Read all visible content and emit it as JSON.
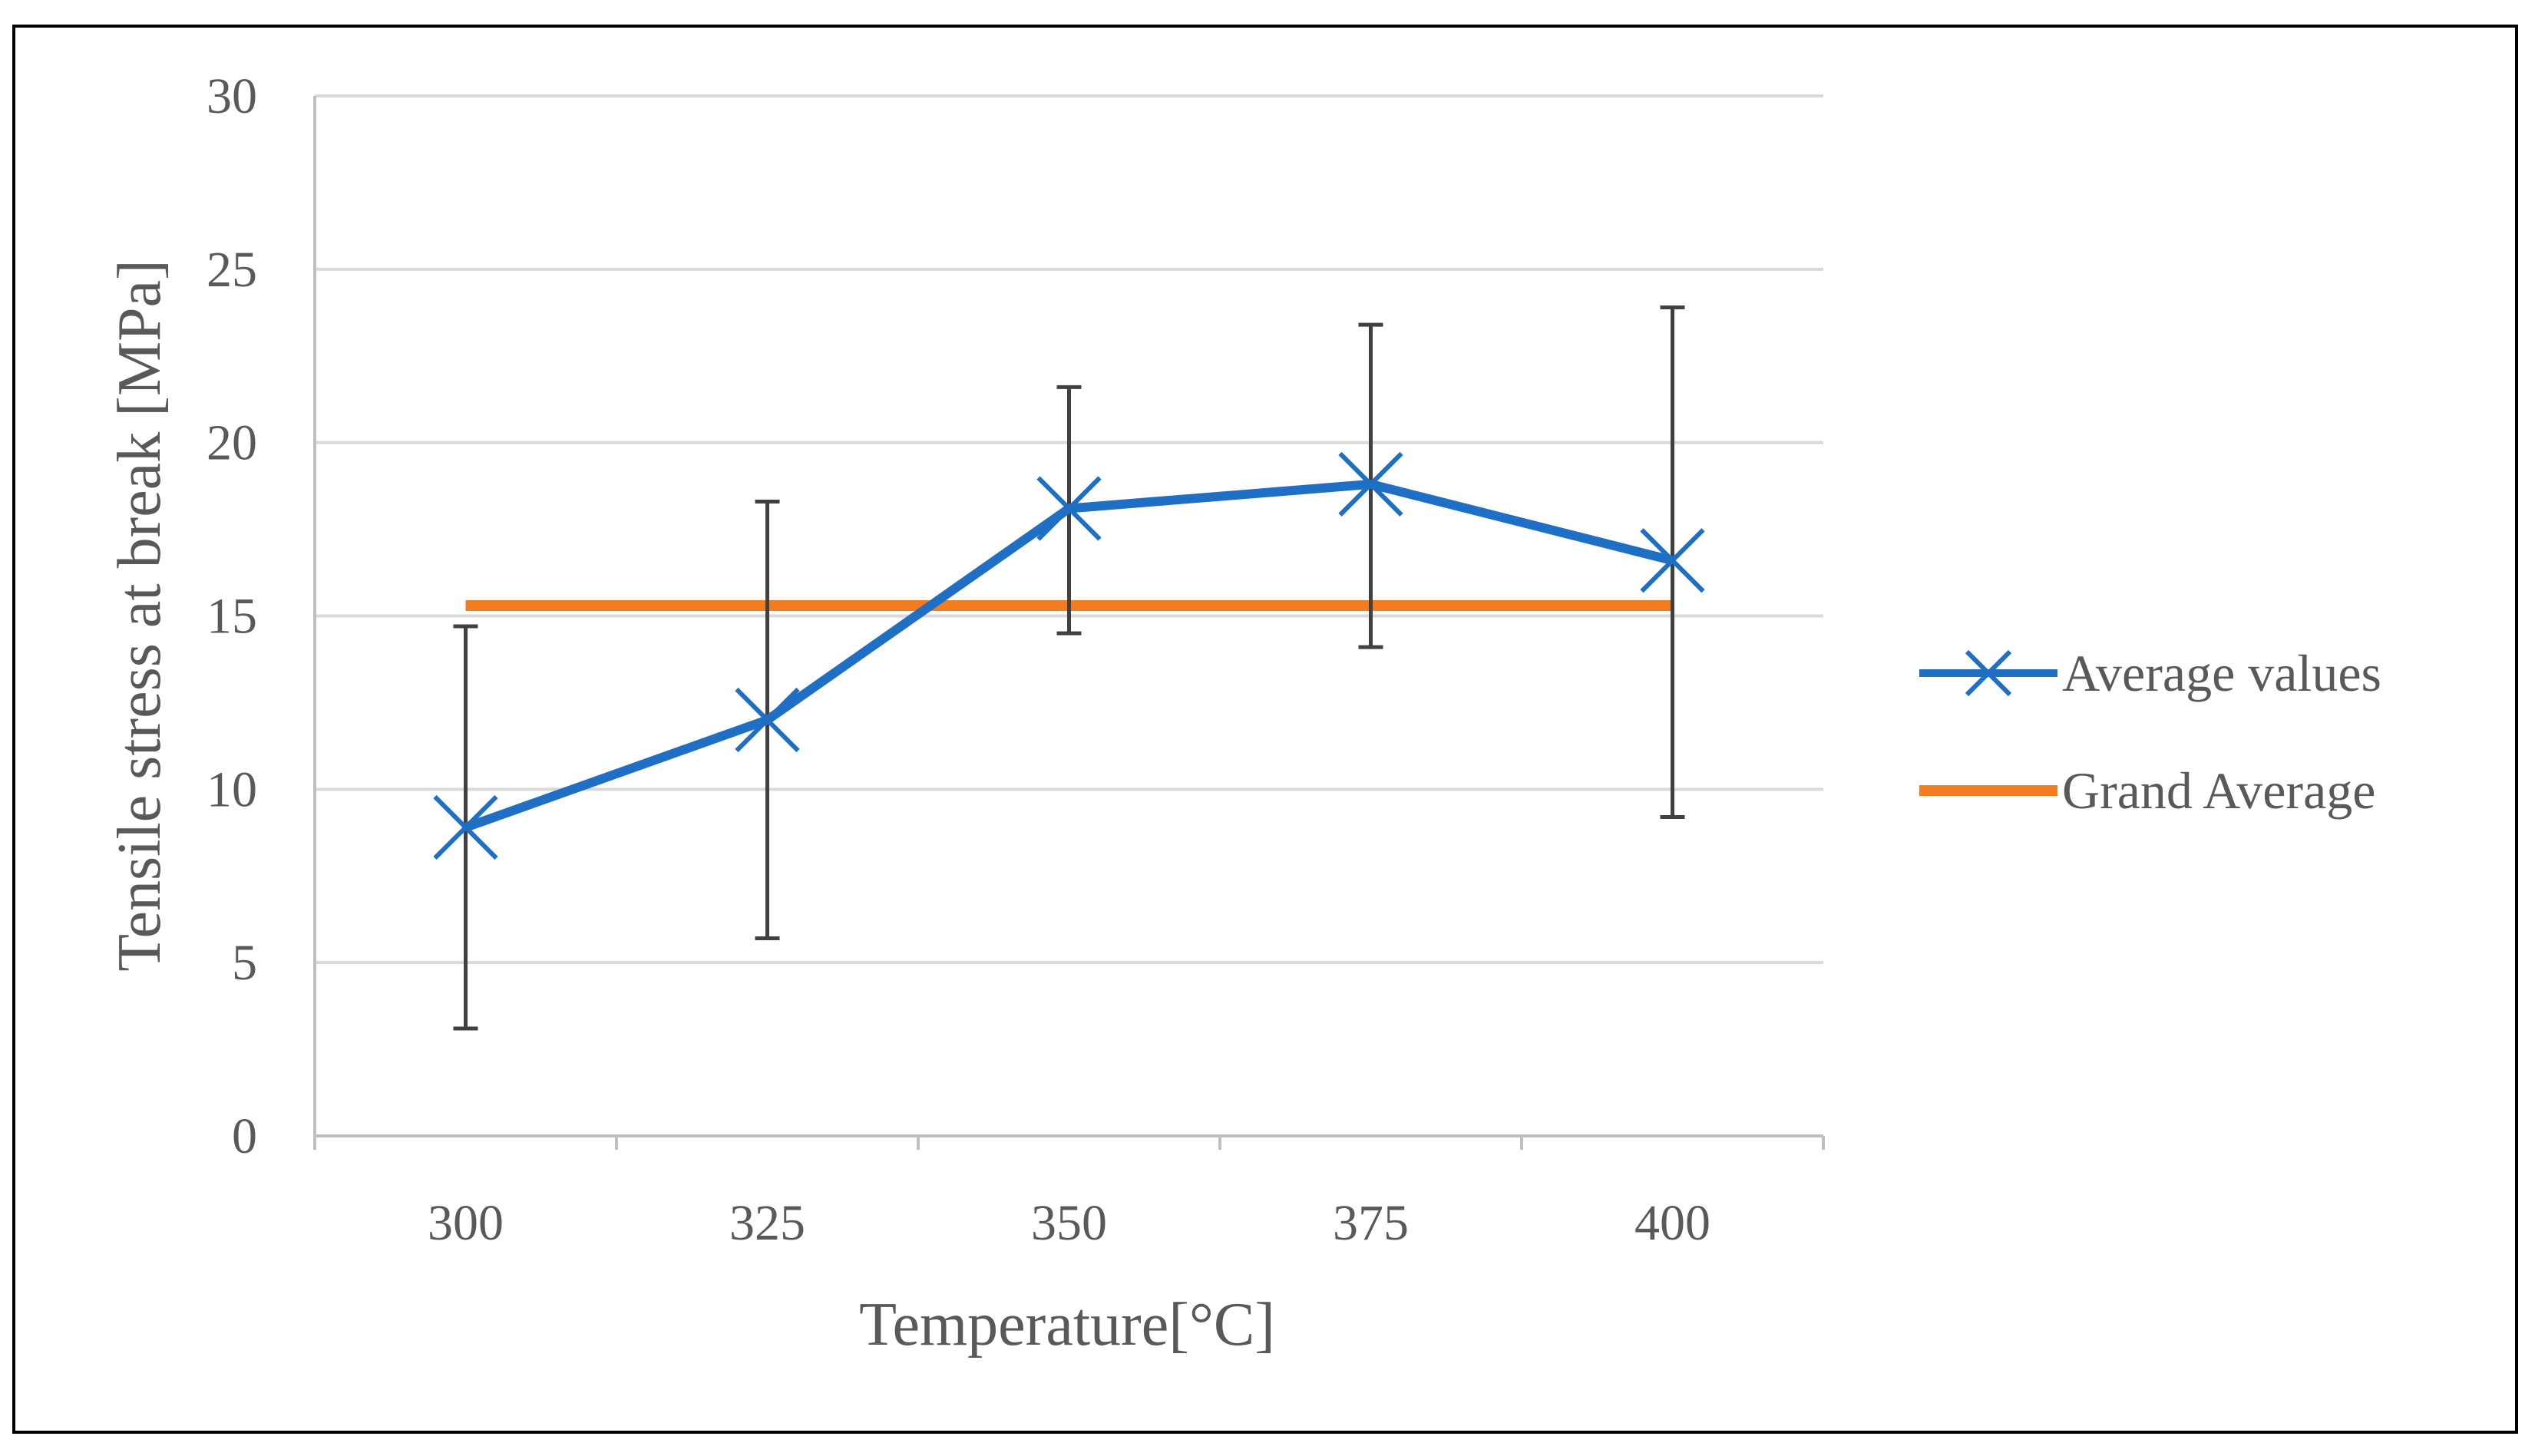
{
  "chart_data": {
    "type": "line",
    "title": "",
    "xlabel": "Temperature[°C]",
    "ylabel": "Tensile stress at break [MPa]",
    "categories": [
      "300",
      "325",
      "350",
      "375",
      "400"
    ],
    "ylim": [
      0,
      30
    ],
    "yticks": [
      "0",
      "5",
      "10",
      "15",
      "20",
      "25",
      "30"
    ],
    "grid": true,
    "legend_position": "right",
    "series": [
      {
        "name": "Average values",
        "color": "#1F6FC5",
        "marker": "x",
        "values": [
          8.9,
          12.0,
          18.1,
          18.8,
          16.6
        ],
        "error_low": [
          3.1,
          5.7,
          14.5,
          14.1,
          9.2
        ],
        "error_high": [
          14.7,
          18.3,
          21.6,
          23.4,
          23.9
        ]
      },
      {
        "name": "Grand Average",
        "color": "#F47C20",
        "marker": "none",
        "values": [
          15.3,
          15.3,
          15.3,
          15.3,
          15.3
        ]
      }
    ]
  }
}
